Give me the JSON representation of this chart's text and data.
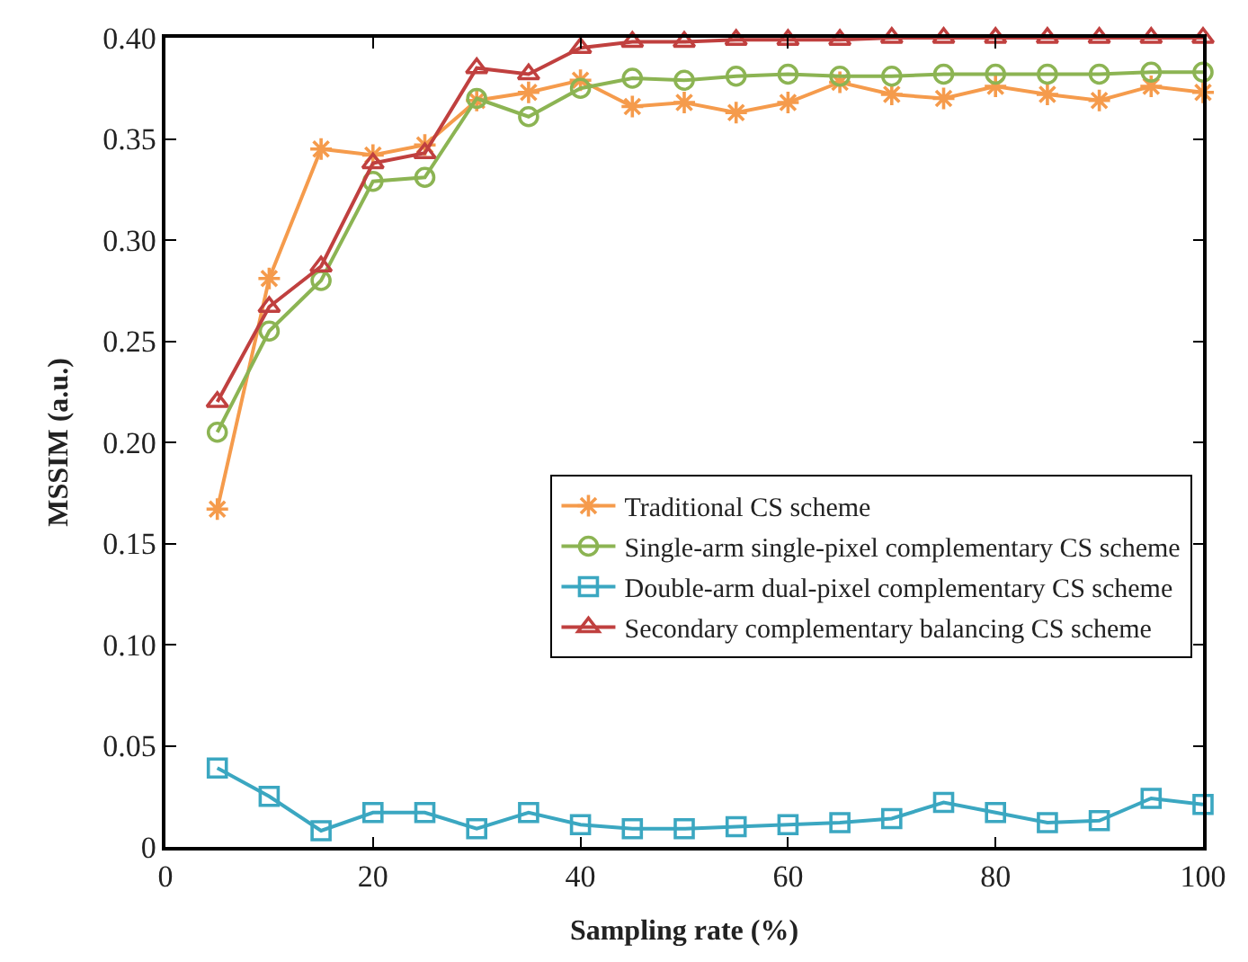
{
  "chart_data": {
    "type": "line",
    "xlabel": "Sampling rate (%)",
    "ylabel": "MSSIM (a.u.)",
    "x": [
      5,
      10,
      15,
      20,
      25,
      30,
      35,
      40,
      45,
      50,
      55,
      60,
      65,
      70,
      75,
      80,
      85,
      90,
      95,
      100
    ],
    "xlim": [
      0,
      100
    ],
    "xticks": [
      0,
      20,
      40,
      60,
      80,
      100
    ],
    "ylim": [
      0,
      0.4
    ],
    "yticks": [
      0,
      {
        "value": 0.05,
        "label": "0.05"
      },
      {
        "value": 0.1,
        "label": "0.10"
      },
      {
        "value": 0.15,
        "label": "0.15"
      },
      {
        "value": 0.2,
        "label": "0.20"
      },
      {
        "value": 0.25,
        "label": "0.25"
      },
      {
        "value": 0.3,
        "label": "0.30"
      },
      {
        "value": 0.35,
        "label": "0.35"
      },
      {
        "value": 0.4,
        "label": "0.40"
      }
    ],
    "legend": "center right",
    "series": [
      {
        "name": "Traditional CS scheme",
        "color": "#f59b4c",
        "marker": "cross",
        "values": [
          0.167,
          0.281,
          0.345,
          0.342,
          0.347,
          0.369,
          0.373,
          0.379,
          0.366,
          0.368,
          0.363,
          0.368,
          0.378,
          0.372,
          0.37,
          0.376,
          0.372,
          0.369,
          0.376,
          0.373
        ]
      },
      {
        "name": "Single-arm single-pixel complementary CS scheme",
        "color": "#8cb453",
        "marker": "circle",
        "values": [
          0.205,
          0.255,
          0.28,
          0.329,
          0.331,
          0.37,
          0.361,
          0.375,
          0.38,
          0.379,
          0.381,
          0.382,
          0.381,
          0.381,
          0.382,
          0.382,
          0.382,
          0.382,
          0.383,
          0.383
        ]
      },
      {
        "name": "Double-arm dual-pixel complementary CS scheme",
        "color": "#3ba7c1",
        "marker": "square",
        "values": [
          0.039,
          0.025,
          0.008,
          0.017,
          0.017,
          0.009,
          0.017,
          0.011,
          0.009,
          0.009,
          0.01,
          0.011,
          0.012,
          0.014,
          0.022,
          0.017,
          0.012,
          0.013,
          0.024,
          0.021
        ]
      },
      {
        "name": "Secondary complementary balancing CS scheme",
        "color": "#c0403f",
        "marker": "triangle",
        "values": [
          0.22,
          0.267,
          0.287,
          0.338,
          0.343,
          0.385,
          0.382,
          0.395,
          0.398,
          0.398,
          0.399,
          0.399,
          0.399,
          0.4,
          0.4,
          0.4,
          0.4,
          0.4,
          0.4,
          0.4
        ]
      }
    ]
  }
}
